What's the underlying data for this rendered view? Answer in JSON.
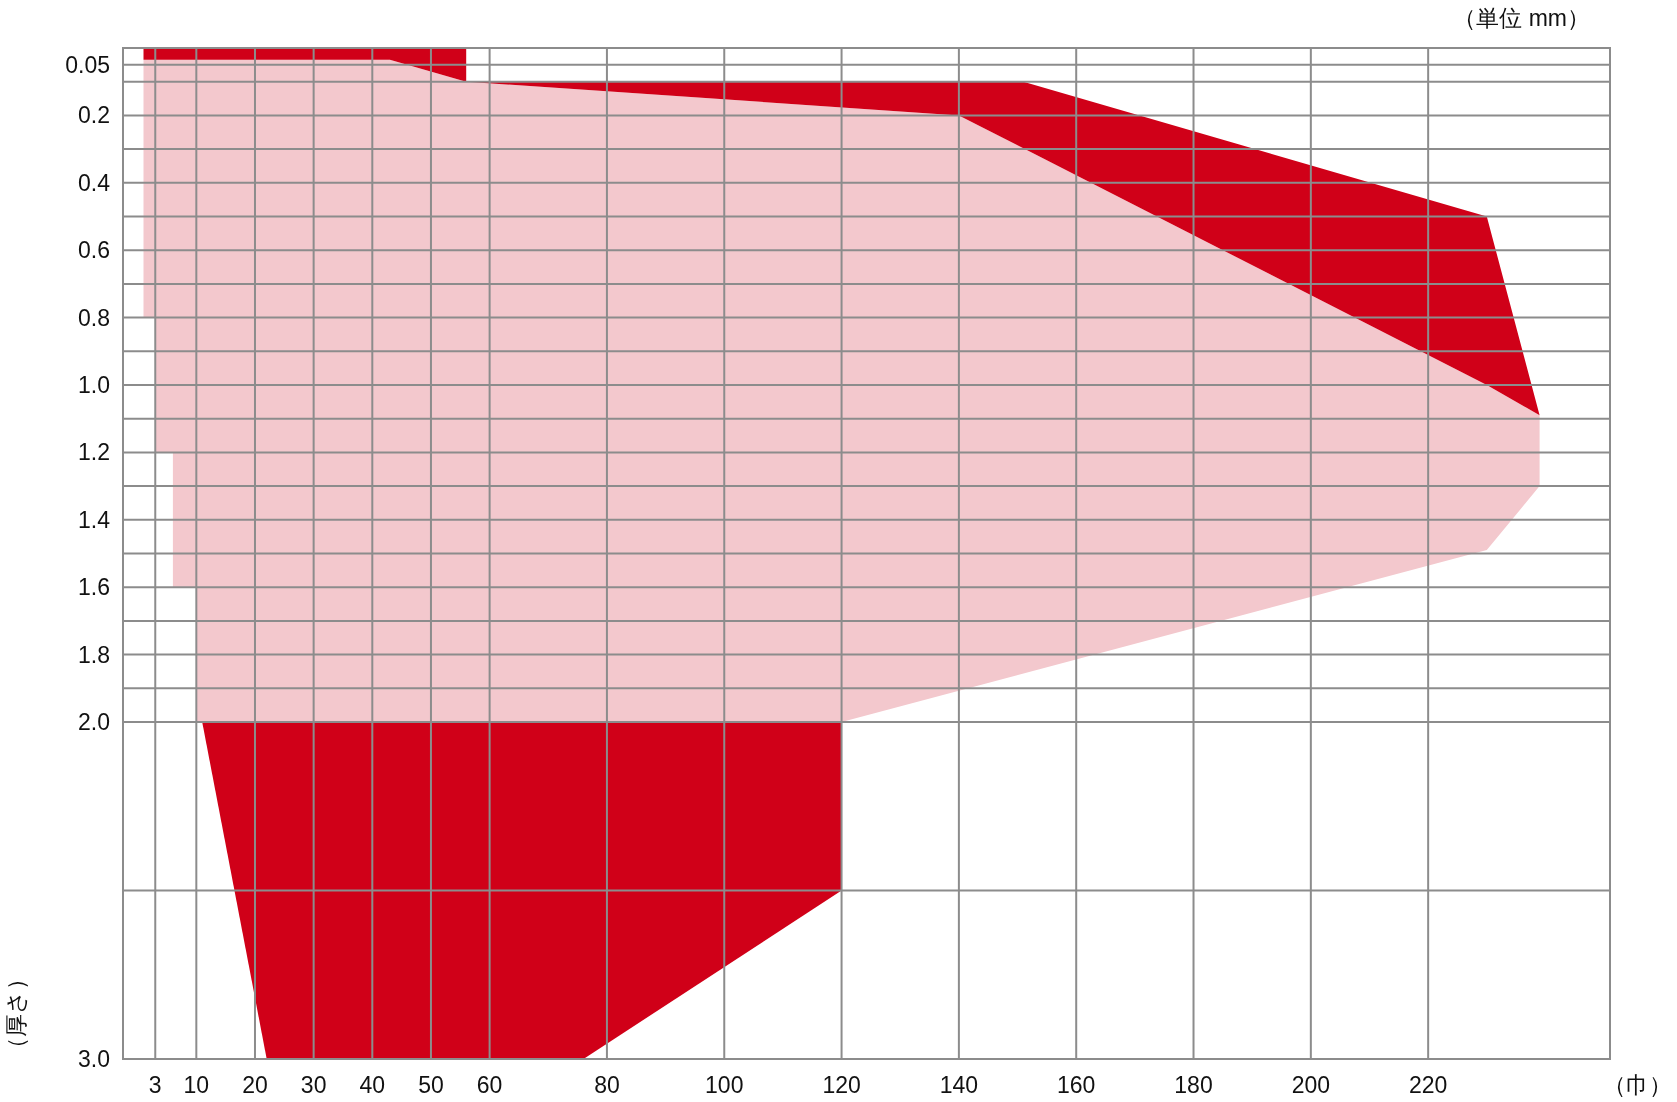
{
  "chart_data": {
    "type": "area",
    "xlabel": "（巾）",
    "ylabel": "（厚さ）",
    "annotations": [
      "（単位 mm）"
    ],
    "xlim": [
      -2.5,
      251
    ],
    "ylim": [
      3.0,
      0
    ],
    "xticks": [
      3,
      10,
      20,
      30,
      40,
      50,
      60,
      80,
      100,
      120,
      140,
      160,
      180,
      200,
      220
    ],
    "yticks": [
      {
        "value": 0,
        "label": null
      },
      0.05,
      {
        "value": 0.1,
        "label": null
      },
      0.2,
      {
        "value": 0.3,
        "label": null
      },
      0.4,
      {
        "value": 0.5,
        "label": null
      },
      0.6,
      {
        "value": 0.7,
        "label": null
      },
      0.8,
      {
        "value": 0.9,
        "label": null
      },
      {
        "value": 1.0,
        "label": "1.0"
      },
      {
        "value": 1.1,
        "label": null
      },
      1.2,
      {
        "value": 1.3,
        "label": null
      },
      1.4,
      {
        "value": 1.5,
        "label": null
      },
      1.6,
      {
        "value": 1.7,
        "label": null
      },
      1.8,
      {
        "value": 1.9,
        "label": null
      },
      {
        "value": 2.0,
        "label": "2.0"
      },
      {
        "value": 2.5,
        "label": null
      },
      {
        "value": 3.0,
        "label": "3.0"
      }
    ],
    "grid": true,
    "series": [
      {
        "color": "#f3c8cd",
        "x": [
          1,
          43,
          56,
          140,
          230,
          239,
          239,
          230,
          120,
          10,
          10,
          6,
          6,
          3,
          3,
          1
        ],
        "values": [
          0.035,
          0.035,
          0.1,
          0.2,
          1.0,
          1.09,
          1.3,
          1.49,
          2.0,
          2.0,
          1.6,
          1.6,
          1.2,
          1.2,
          0.8,
          0.8
        ]
      },
      {
        "color": "#d00018",
        "x": [
          1,
          56,
          56,
          43,
          1
        ],
        "values": [
          0,
          0,
          0.1,
          0.035,
          0.035
        ]
      },
      {
        "color": "#d00018",
        "x": [
          56,
          151,
          230,
          239,
          230,
          140
        ],
        "values": [
          0.1,
          0.1,
          0.5,
          1.09,
          1.0,
          0.2
        ]
      },
      {
        "color": "#d00018",
        "x": [
          11,
          120,
          120,
          76,
          22
        ],
        "values": [
          2.0,
          2.0,
          2.5,
          3.0,
          3.0
        ]
      }
    ]
  }
}
